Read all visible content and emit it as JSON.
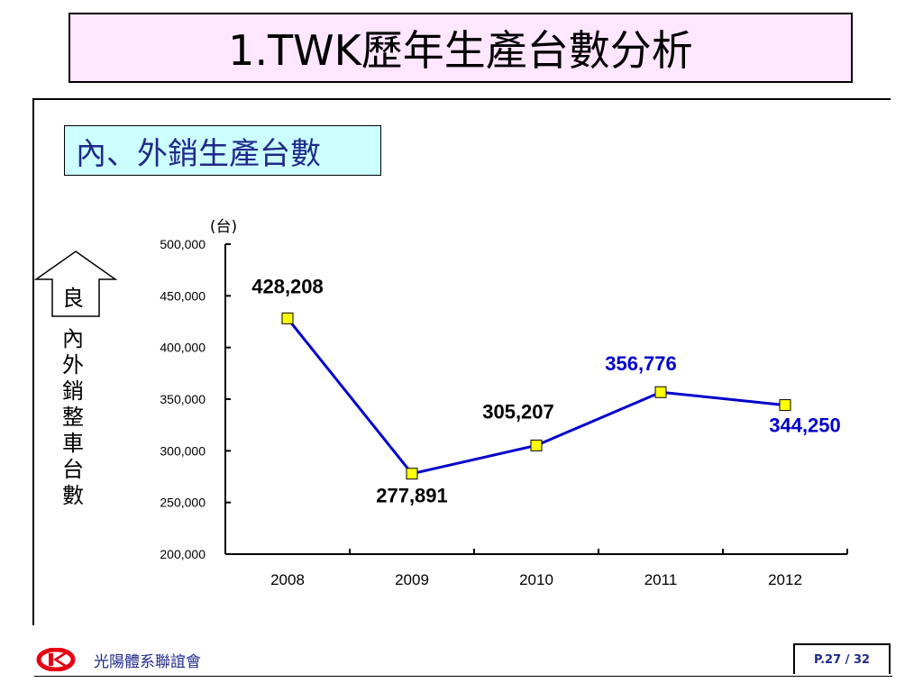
{
  "slide": {
    "title": "1.TWK歷年生產台數分析",
    "subtitle": "內、外銷生產台數",
    "arrow_label": "良",
    "vertical_label": "內外銷整車台數",
    "footer_org": "光陽體系聯誼會",
    "page_label": "P.27 / 32"
  },
  "colors": {
    "title_bg": "#ffe6ff",
    "subtitle_bg": "#ccffff",
    "subtitle_text": "#1f2a8a",
    "line": "#0000cc",
    "marker_fill": "#ffff00",
    "highlight_label": "#0000cc",
    "logo_red": "#e60012"
  },
  "chart_data": {
    "type": "line",
    "unit_label": "(台)",
    "categories": [
      "2008",
      "2009",
      "2010",
      "2011",
      "2012"
    ],
    "series": [
      {
        "values": [
          428208,
          277891,
          305207,
          356776,
          344250
        ]
      }
    ],
    "data_labels": [
      "428,208",
      "277,891",
      "305,207",
      "356,776",
      "344,250"
    ],
    "label_colors": [
      "#000000",
      "#000000",
      "#000000",
      "#0000cc",
      "#0000cc"
    ],
    "ylim": [
      200000,
      500000
    ],
    "yticks": [
      "200,000",
      "250,000",
      "300,000",
      "350,000",
      "400,000",
      "450,000",
      "500,000"
    ],
    "ytick_values": [
      200000,
      250000,
      300000,
      350000,
      400000,
      450000,
      500000
    ],
    "grid": false,
    "legend": "none"
  }
}
